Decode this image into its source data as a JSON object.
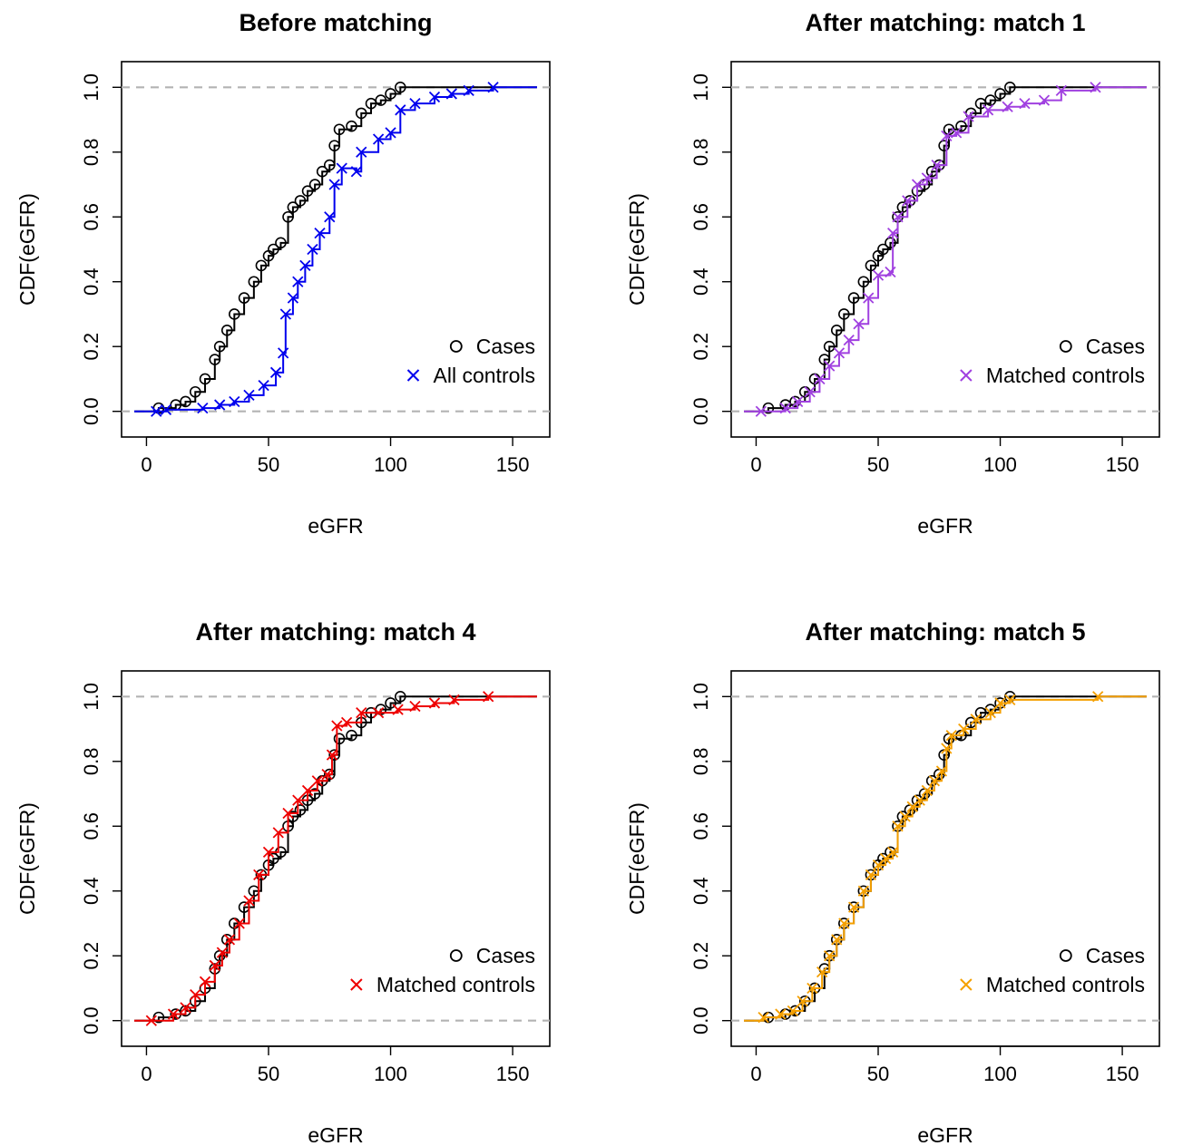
{
  "chart_data": [
    {
      "type": "line",
      "title": "Before matching",
      "xlabel": "eGFR",
      "ylabel": "CDF(eGFR)",
      "xlim": [
        0,
        155
      ],
      "ylim": [
        0,
        1
      ],
      "xticks": [
        0,
        50,
        100,
        150
      ],
      "yticks": [
        "0.0",
        "0.2",
        "0.4",
        "0.6",
        "0.8",
        "1.0"
      ],
      "xtick_labels": [
        "0",
        "50",
        "100",
        "150"
      ],
      "grid": false,
      "reference_lines": [
        0,
        1
      ],
      "legend_position": "bottom-right",
      "series": [
        {
          "name": "Cases",
          "marker": "circle",
          "color": "#000000",
          "points": [
            [
              5,
              0.01
            ],
            [
              12,
              0.02
            ],
            [
              16,
              0.03
            ],
            [
              20,
              0.06
            ],
            [
              24,
              0.1
            ],
            [
              28,
              0.16
            ],
            [
              30,
              0.2
            ],
            [
              33,
              0.25
            ],
            [
              36,
              0.3
            ],
            [
              40,
              0.35
            ],
            [
              44,
              0.4
            ],
            [
              47,
              0.45
            ],
            [
              50,
              0.48
            ],
            [
              52,
              0.5
            ],
            [
              55,
              0.52
            ],
            [
              58,
              0.6
            ],
            [
              60,
              0.63
            ],
            [
              63,
              0.65
            ],
            [
              66,
              0.68
            ],
            [
              69,
              0.7
            ],
            [
              72,
              0.74
            ],
            [
              75,
              0.76
            ],
            [
              77,
              0.82
            ],
            [
              79,
              0.87
            ],
            [
              84,
              0.88
            ],
            [
              88,
              0.92
            ],
            [
              92,
              0.95
            ],
            [
              96,
              0.96
            ],
            [
              100,
              0.98
            ],
            [
              104,
              1.0
            ]
          ]
        },
        {
          "name": "All controls",
          "marker": "x",
          "color": "#0000ee",
          "points": [
            [
              4,
              0.0
            ],
            [
              8,
              0.005
            ],
            [
              23,
              0.01
            ],
            [
              30,
              0.02
            ],
            [
              36,
              0.03
            ],
            [
              42,
              0.05
            ],
            [
              48,
              0.08
            ],
            [
              53,
              0.12
            ],
            [
              56,
              0.18
            ],
            [
              57,
              0.3
            ],
            [
              60,
              0.35
            ],
            [
              62,
              0.4
            ],
            [
              65,
              0.45
            ],
            [
              68,
              0.5
            ],
            [
              71,
              0.55
            ],
            [
              75,
              0.6
            ],
            [
              77,
              0.7
            ],
            [
              80,
              0.75
            ],
            [
              86,
              0.74
            ],
            [
              88,
              0.8
            ],
            [
              95,
              0.84
            ],
            [
              100,
              0.86
            ],
            [
              104,
              0.93
            ],
            [
              110,
              0.95
            ],
            [
              118,
              0.97
            ],
            [
              125,
              0.98
            ],
            [
              132,
              0.99
            ],
            [
              142,
              1.0
            ]
          ]
        }
      ]
    },
    {
      "type": "line",
      "title": "After matching: match 1",
      "xlabel": "eGFR",
      "ylabel": "CDF(eGFR)",
      "xlim": [
        0,
        155
      ],
      "ylim": [
        0,
        1
      ],
      "xticks": [
        0,
        50,
        100,
        150
      ],
      "yticks": [
        "0.0",
        "0.2",
        "0.4",
        "0.6",
        "0.8",
        "1.0"
      ],
      "xtick_labels": [
        "0",
        "50",
        "100",
        "150"
      ],
      "grid": false,
      "reference_lines": [
        0,
        1
      ],
      "legend_position": "bottom-right",
      "series": [
        {
          "name": "Cases",
          "marker": "circle",
          "color": "#000000",
          "points": [
            [
              5,
              0.01
            ],
            [
              12,
              0.02
            ],
            [
              16,
              0.03
            ],
            [
              20,
              0.06
            ],
            [
              24,
              0.1
            ],
            [
              28,
              0.16
            ],
            [
              30,
              0.2
            ],
            [
              33,
              0.25
            ],
            [
              36,
              0.3
            ],
            [
              40,
              0.35
            ],
            [
              44,
              0.4
            ],
            [
              47,
              0.45
            ],
            [
              50,
              0.48
            ],
            [
              52,
              0.5
            ],
            [
              55,
              0.52
            ],
            [
              58,
              0.6
            ],
            [
              60,
              0.63
            ],
            [
              63,
              0.65
            ],
            [
              66,
              0.68
            ],
            [
              69,
              0.7
            ],
            [
              72,
              0.74
            ],
            [
              75,
              0.76
            ],
            [
              77,
              0.82
            ],
            [
              79,
              0.87
            ],
            [
              84,
              0.88
            ],
            [
              88,
              0.92
            ],
            [
              92,
              0.95
            ],
            [
              96,
              0.96
            ],
            [
              100,
              0.98
            ],
            [
              104,
              1.0
            ]
          ]
        },
        {
          "name": "Matched controls",
          "marker": "x",
          "color": "#a040e0",
          "points": [
            [
              2,
              0.0
            ],
            [
              12,
              0.01
            ],
            [
              17,
              0.03
            ],
            [
              22,
              0.06
            ],
            [
              26,
              0.1
            ],
            [
              30,
              0.14
            ],
            [
              34,
              0.18
            ],
            [
              38,
              0.22
            ],
            [
              42,
              0.27
            ],
            [
              46,
              0.35
            ],
            [
              50,
              0.42
            ],
            [
              55,
              0.43
            ],
            [
              56,
              0.55
            ],
            [
              58,
              0.6
            ],
            [
              62,
              0.65
            ],
            [
              66,
              0.7
            ],
            [
              70,
              0.72
            ],
            [
              74,
              0.76
            ],
            [
              78,
              0.85
            ],
            [
              82,
              0.86
            ],
            [
              87,
              0.91
            ],
            [
              95,
              0.93
            ],
            [
              103,
              0.94
            ],
            [
              110,
              0.95
            ],
            [
              118,
              0.96
            ],
            [
              125,
              0.99
            ],
            [
              139,
              1.0
            ]
          ]
        }
      ]
    },
    {
      "type": "line",
      "title": "After matching: match 4",
      "xlabel": "eGFR",
      "ylabel": "CDF(eGFR)",
      "xlim": [
        0,
        155
      ],
      "ylim": [
        0,
        1
      ],
      "xticks": [
        0,
        50,
        100,
        150
      ],
      "yticks": [
        "0.0",
        "0.2",
        "0.4",
        "0.6",
        "0.8",
        "1.0"
      ],
      "xtick_labels": [
        "0",
        "50",
        "100",
        "150"
      ],
      "grid": false,
      "reference_lines": [
        0,
        1
      ],
      "legend_position": "bottom-right",
      "series": [
        {
          "name": "Cases",
          "marker": "circle",
          "color": "#000000",
          "points": [
            [
              5,
              0.01
            ],
            [
              12,
              0.02
            ],
            [
              16,
              0.03
            ],
            [
              20,
              0.06
            ],
            [
              24,
              0.1
            ],
            [
              28,
              0.16
            ],
            [
              30,
              0.2
            ],
            [
              33,
              0.25
            ],
            [
              36,
              0.3
            ],
            [
              40,
              0.35
            ],
            [
              44,
              0.4
            ],
            [
              47,
              0.45
            ],
            [
              50,
              0.48
            ],
            [
              52,
              0.5
            ],
            [
              55,
              0.52
            ],
            [
              58,
              0.6
            ],
            [
              60,
              0.63
            ],
            [
              63,
              0.65
            ],
            [
              66,
              0.68
            ],
            [
              69,
              0.7
            ],
            [
              72,
              0.74
            ],
            [
              75,
              0.76
            ],
            [
              77,
              0.82
            ],
            [
              79,
              0.87
            ],
            [
              84,
              0.88
            ],
            [
              88,
              0.92
            ],
            [
              92,
              0.95
            ],
            [
              96,
              0.96
            ],
            [
              100,
              0.98
            ],
            [
              104,
              1.0
            ]
          ]
        },
        {
          "name": "Matched controls",
          "marker": "x",
          "color": "#ee0000",
          "points": [
            [
              2,
              0.0
            ],
            [
              11,
              0.02
            ],
            [
              16,
              0.04
            ],
            [
              20,
              0.08
            ],
            [
              24,
              0.12
            ],
            [
              28,
              0.17
            ],
            [
              31,
              0.21
            ],
            [
              34,
              0.25
            ],
            [
              38,
              0.3
            ],
            [
              42,
              0.37
            ],
            [
              46,
              0.45
            ],
            [
              50,
              0.52
            ],
            [
              54,
              0.58
            ],
            [
              58,
              0.64
            ],
            [
              62,
              0.68
            ],
            [
              66,
              0.71
            ],
            [
              70,
              0.74
            ],
            [
              74,
              0.76
            ],
            [
              76,
              0.82
            ],
            [
              78,
              0.91
            ],
            [
              82,
              0.92
            ],
            [
              88,
              0.95
            ],
            [
              95,
              0.95
            ],
            [
              103,
              0.96
            ],
            [
              110,
              0.97
            ],
            [
              118,
              0.98
            ],
            [
              126,
              0.99
            ],
            [
              140,
              1.0
            ]
          ]
        }
      ]
    },
    {
      "type": "line",
      "title": "After matching: match 5",
      "xlabel": "eGFR",
      "ylabel": "CDF(eGFR)",
      "xlim": [
        0,
        155
      ],
      "ylim": [
        0,
        1
      ],
      "xticks": [
        0,
        50,
        100,
        150
      ],
      "yticks": [
        "0.0",
        "0.2",
        "0.4",
        "0.6",
        "0.8",
        "1.0"
      ],
      "xtick_labels": [
        "0",
        "50",
        "100",
        "150"
      ],
      "grid": false,
      "reference_lines": [
        0,
        1
      ],
      "legend_position": "bottom-right",
      "series": [
        {
          "name": "Cases",
          "marker": "circle",
          "color": "#000000",
          "points": [
            [
              5,
              0.01
            ],
            [
              12,
              0.02
            ],
            [
              16,
              0.03
            ],
            [
              20,
              0.06
            ],
            [
              24,
              0.1
            ],
            [
              28,
              0.16
            ],
            [
              30,
              0.2
            ],
            [
              33,
              0.25
            ],
            [
              36,
              0.3
            ],
            [
              40,
              0.35
            ],
            [
              44,
              0.4
            ],
            [
              47,
              0.45
            ],
            [
              50,
              0.48
            ],
            [
              52,
              0.5
            ],
            [
              55,
              0.52
            ],
            [
              58,
              0.6
            ],
            [
              60,
              0.63
            ],
            [
              63,
              0.65
            ],
            [
              66,
              0.68
            ],
            [
              69,
              0.7
            ],
            [
              72,
              0.74
            ],
            [
              75,
              0.76
            ],
            [
              77,
              0.82
            ],
            [
              79,
              0.87
            ],
            [
              84,
              0.88
            ],
            [
              88,
              0.92
            ],
            [
              92,
              0.95
            ],
            [
              96,
              0.96
            ],
            [
              100,
              0.98
            ],
            [
              104,
              1.0
            ]
          ]
        },
        {
          "name": "Matched controls",
          "marker": "x",
          "color": "#f5a000",
          "points": [
            [
              3,
              0.01
            ],
            [
              10,
              0.02
            ],
            [
              15,
              0.03
            ],
            [
              19,
              0.06
            ],
            [
              23,
              0.1
            ],
            [
              27,
              0.15
            ],
            [
              30,
              0.2
            ],
            [
              33,
              0.25
            ],
            [
              36,
              0.3
            ],
            [
              40,
              0.35
            ],
            [
              44,
              0.4
            ],
            [
              47,
              0.45
            ],
            [
              50,
              0.48
            ],
            [
              53,
              0.5
            ],
            [
              56,
              0.52
            ],
            [
              58,
              0.6
            ],
            [
              61,
              0.63
            ],
            [
              64,
              0.66
            ],
            [
              67,
              0.68
            ],
            [
              70,
              0.71
            ],
            [
              73,
              0.74
            ],
            [
              76,
              0.77
            ],
            [
              78,
              0.84
            ],
            [
              80,
              0.88
            ],
            [
              85,
              0.9
            ],
            [
              90,
              0.93
            ],
            [
              96,
              0.95
            ],
            [
              100,
              0.98
            ],
            [
              104,
              0.99
            ],
            [
              140,
              1.0
            ]
          ]
        }
      ]
    }
  ]
}
